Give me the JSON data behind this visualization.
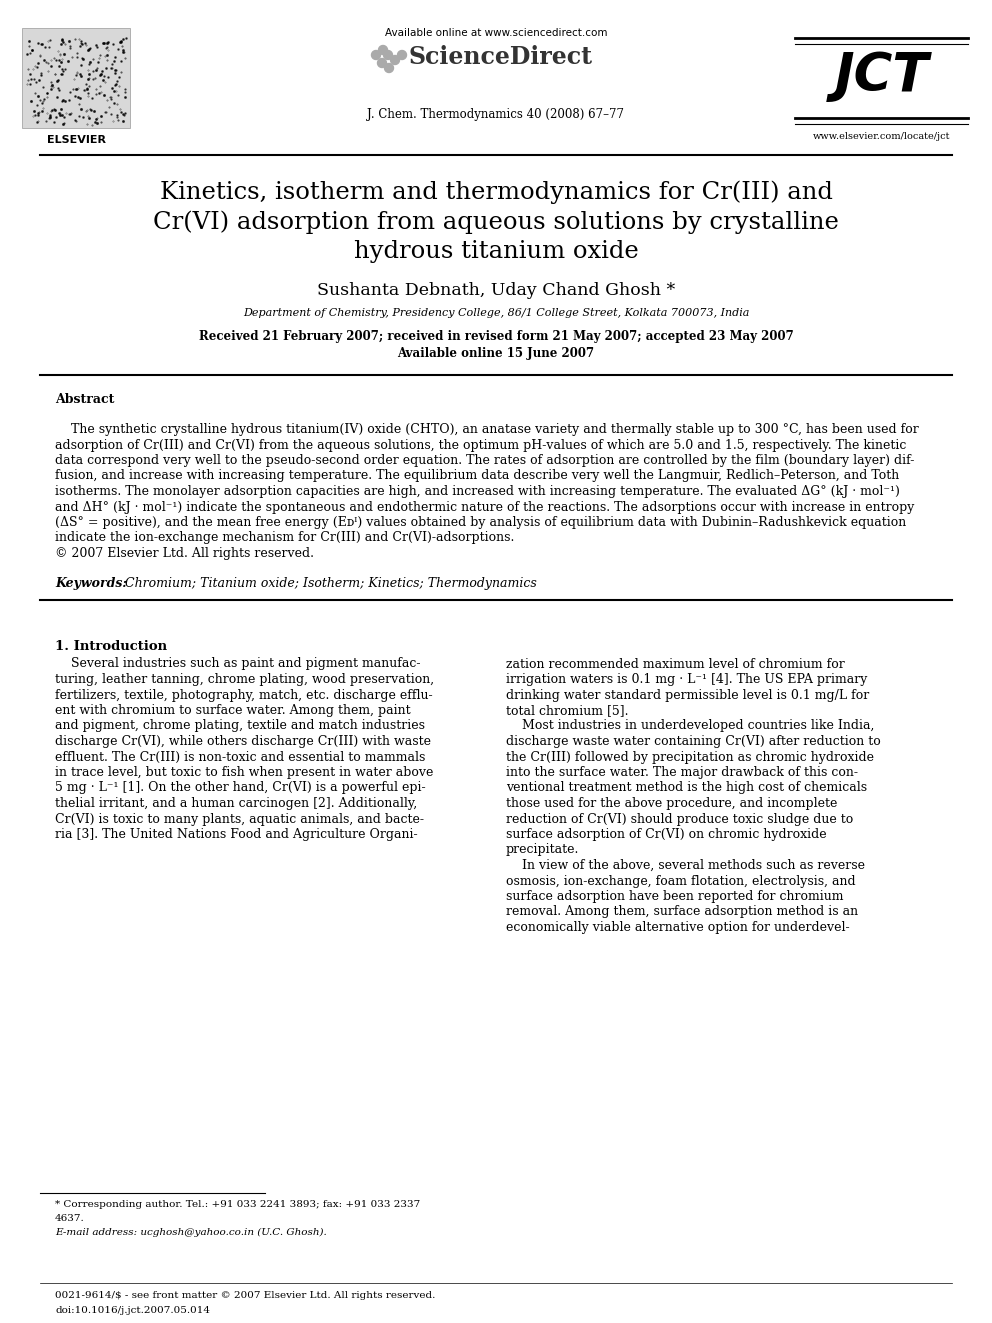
{
  "bg_color": "#ffffff",
  "title_line1": "Kinetics, isotherm and thermodynamics for Cr(III) and",
  "title_line2": "Cr(VI) adsorption from aqueous solutions by crystalline",
  "title_line3": "hydrous titanium oxide",
  "authors": "Sushanta Debnath, Uday Chand Ghosh *",
  "affiliation": "Department of Chemistry, Presidency College, 86/1 College Street, Kolkata 700073, India",
  "received": "Received 21 February 2007; received in revised form 21 May 2007; accepted 23 May 2007",
  "available": "Available online 15 June 2007",
  "journal": "J. Chem. Thermodynamics 40 (2008) 67–77",
  "available_online": "Available online at www.sciencedirect.com",
  "website": "www.elsevier.com/locate/jct",
  "abstract_title": "Abstract",
  "abstract_lines": [
    "    The synthetic crystalline hydrous titanium(IV) oxide (CHTO), an anatase variety and thermally stable up to 300 °C, has been used for",
    "adsorption of Cr(III) and Cr(VI) from the aqueous solutions, the optimum pH-values of which are 5.0 and 1.5, respectively. The kinetic",
    "data correspond very well to the pseudo-second order equation. The rates of adsorption are controlled by the film (boundary layer) dif-",
    "fusion, and increase with increasing temperature. The equilibrium data describe very well the Langmuir, Redlich–Peterson, and Toth",
    "isotherms. The monolayer adsorption capacities are high, and increased with increasing temperature. The evaluated ΔG° (kJ · mol⁻¹)",
    "and ΔH° (kJ · mol⁻¹) indicate the spontaneous and endothermic nature of the reactions. The adsorptions occur with increase in entropy",
    "(ΔS° = positive), and the mean free energy (Eᴅᴵ) values obtained by analysis of equilibrium data with Dubinin–Radushkevick equation",
    "indicate the ion-exchange mechanism for Cr(III) and Cr(VI)-adsorptions.",
    "© 2007 Elsevier Ltd. All rights reserved."
  ],
  "keywords_bold": "Keywords:",
  "keywords_rest": "  Chromium; Titanium oxide; Isotherm; Kinetics; Thermodynamics",
  "section1_title": "1. Introduction",
  "intro_col1_lines": [
    "    Several industries such as paint and pigment manufac-",
    "turing, leather tanning, chrome plating, wood preservation,",
    "fertilizers, textile, photography, match, etc. discharge efflu-",
    "ent with chromium to surface water. Among them, paint",
    "and pigment, chrome plating, textile and match industries",
    "discharge Cr(VI), while others discharge Cr(III) with waste",
    "effluent. The Cr(III) is non-toxic and essential to mammals",
    "in trace level, but toxic to fish when present in water above",
    "5 mg · L⁻¹ [1]. On the other hand, Cr(VI) is a powerful epi-",
    "thelial irritant, and a human carcinogen [2]. Additionally,",
    "Cr(VI) is toxic to many plants, aquatic animals, and bacte-",
    "ria [3]. The United Nations Food and Agriculture Organi-"
  ],
  "intro_col2_lines": [
    "zation recommended maximum level of chromium for",
    "irrigation waters is 0.1 mg · L⁻¹ [4]. The US EPA primary",
    "drinking water standard permissible level is 0.1 mg/L for",
    "total chromium [5].",
    "    Most industries in underdeveloped countries like India,",
    "discharge waste water containing Cr(VI) after reduction to",
    "the Cr(III) followed by precipitation as chromic hydroxide",
    "into the surface water. The major drawback of this con-",
    "ventional treatment method is the high cost of chemicals",
    "those used for the above procedure, and incomplete",
    "reduction of Cr(VI) should produce toxic sludge due to",
    "surface adsorption of Cr(VI) on chromic hydroxide",
    "precipitate.",
    "    In view of the above, several methods such as reverse",
    "osmosis, ion-exchange, foam flotation, electrolysis, and",
    "surface adsorption have been reported for chromium",
    "removal. Among them, surface adsorption method is an",
    "economically viable alternative option for underdevel-"
  ],
  "footnote1": "* Corresponding author. Tel.: +91 033 2241 3893; fax: +91 033 2337",
  "footnote2": "4637.",
  "footnote3": "E-mail address: ucghosh@yahoo.co.in (U.C. Ghosh).",
  "footer1": "0021-9614/$ - see front matter © 2007 Elsevier Ltd. All rights reserved.",
  "footer2": "doi:10.1016/j.jct.2007.05.014"
}
